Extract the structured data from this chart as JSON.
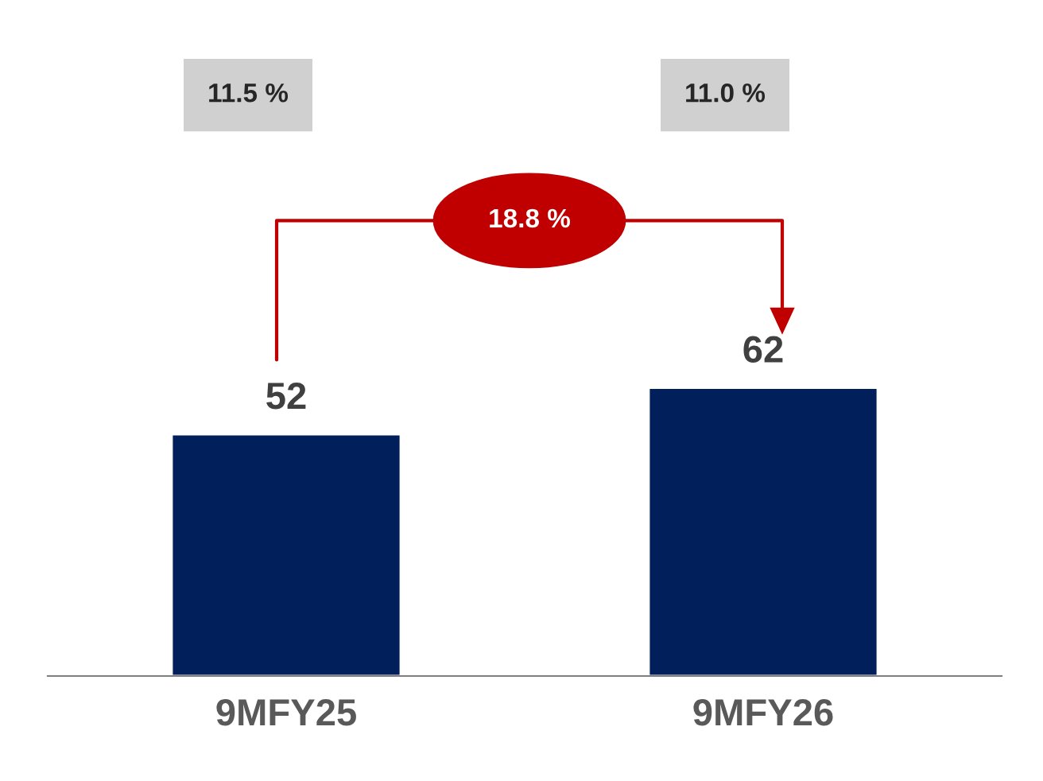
{
  "chart_data": {
    "type": "bar",
    "categories": [
      "9MFY25",
      "9MFY26"
    ],
    "values": [
      52,
      62
    ],
    "color": "#001f5b",
    "data_labels": true,
    "annotations": [
      "11.5 %",
      "11.0 %",
      "18.8 %"
    ],
    "grid": false,
    "legend": false
  }
}
